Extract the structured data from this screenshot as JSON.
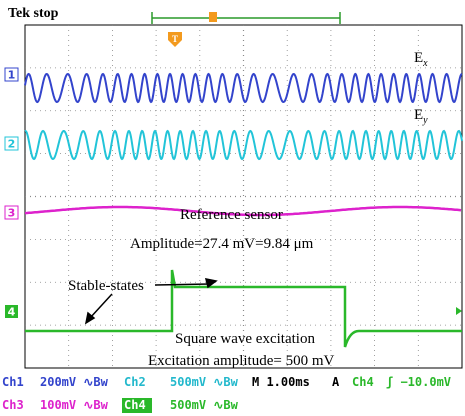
{
  "header": {
    "title": "Tek stop"
  },
  "markers": {
    "trigger": "T",
    "channels": [
      "1",
      "2",
      "3",
      "4"
    ]
  },
  "traces": {
    "ex_label": "E",
    "ex_sub": "x",
    "ey_label": "E",
    "ey_sub": "y"
  },
  "annotations": {
    "reference": "Reference sensor",
    "amplitude": "Amplitude=27.4 mV=9.84 μm",
    "stable": "Stable-states",
    "square": "Square wave excitation",
    "excitation": "Excitation amplitude= 500 mV"
  },
  "status": {
    "row1": [
      "Ch1",
      "200mV ∿Bw",
      "Ch2",
      "500mV ∿Bw",
      "M 1.00ms",
      "A",
      "Ch4",
      "ʃ −10.0mV"
    ],
    "row2": [
      "Ch3",
      "100mV ∿Bw",
      "Ch4",
      "500mV ∿Bw"
    ]
  }
}
